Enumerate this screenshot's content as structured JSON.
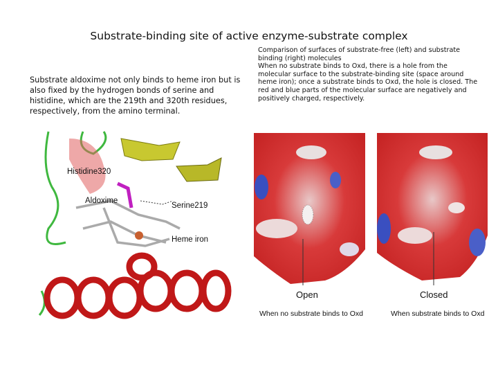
{
  "title": "Substrate-binding site of active enzyme-substrate complex",
  "left_text": "Substrate aldoxime not only binds to heme iron but is also fixed by the hydrogen bonds of serine and histidine, which are the 219th and 320th residues, respectively, from the amino terminal.",
  "right_text": [
    "Comparison of surfaces of substrate-free (left) and substrate binding (right) molecules",
    "When no substrate binds to Oxd, there is a hole from the molecular surface to the substrate-binding site (space around heme iron); once a substrate binds to Oxd, the hole is closed. The red and blue parts of the molecular surface are negatively and positively charged, respectively."
  ],
  "structure_labels": [
    "Histidine320",
    "Aldoxime",
    "Serine219",
    "Heme iron"
  ],
  "surface_panels": [
    {
      "label": "Open",
      "caption": "When no substrate binds to Oxd"
    },
    {
      "label": "Closed",
      "caption": "When substrate binds to Oxd"
    }
  ]
}
